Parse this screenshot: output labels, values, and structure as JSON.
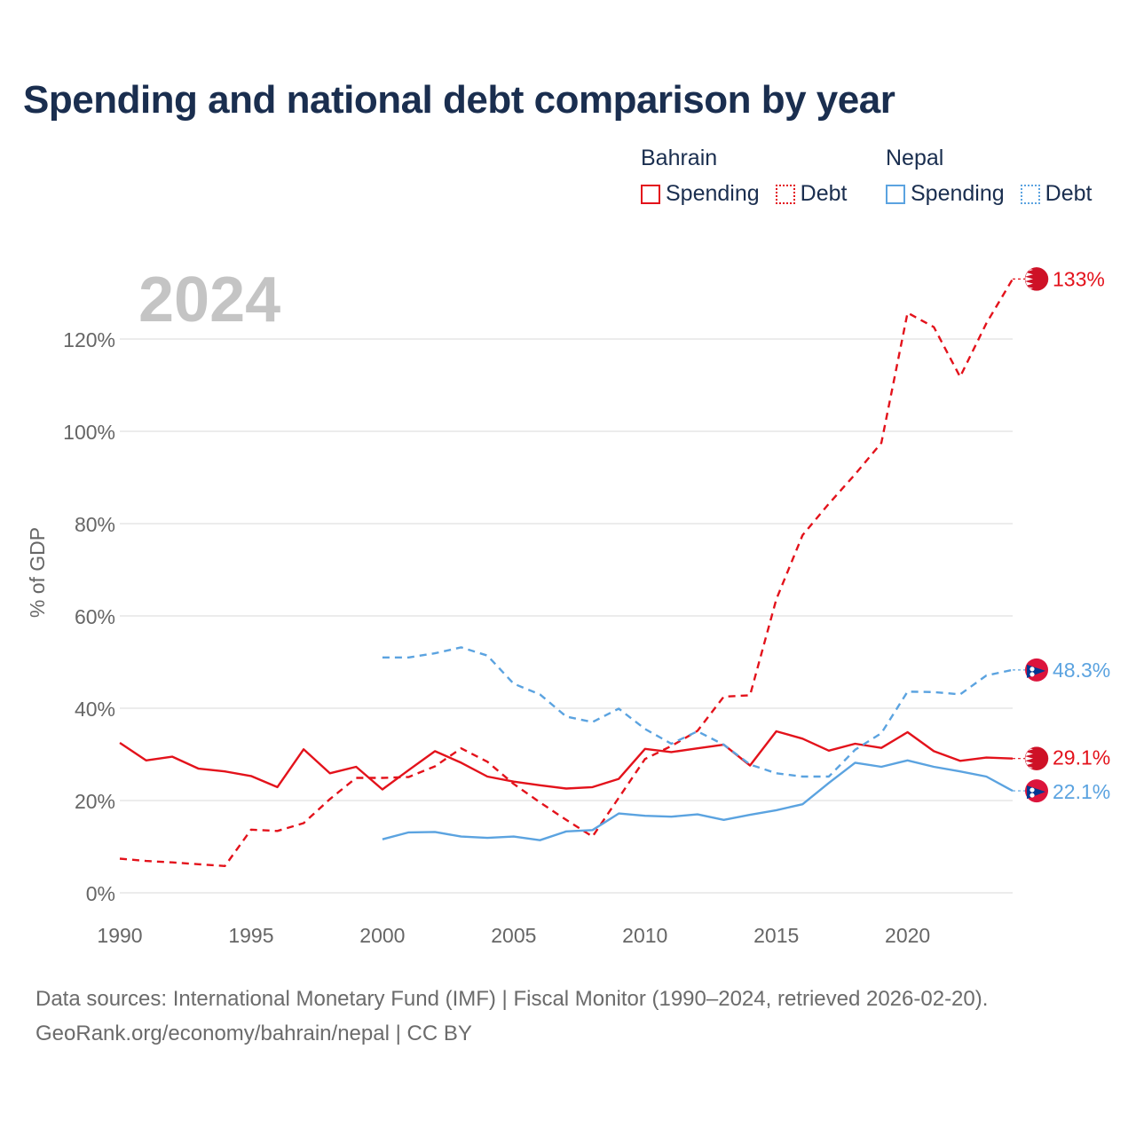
{
  "title": "Spending and national debt comparison by year",
  "legend": {
    "groups": [
      {
        "country": "Bahrain",
        "color": "#e3121b",
        "items": [
          {
            "label": "Spending",
            "style": "solid"
          },
          {
            "label": "Debt",
            "style": "dotted"
          }
        ]
      },
      {
        "country": "Nepal",
        "color": "#5ba3e0",
        "items": [
          {
            "label": "Spending",
            "style": "solid"
          },
          {
            "label": "Debt",
            "style": "dotted"
          }
        ]
      }
    ]
  },
  "year_watermark": "2024",
  "footer": {
    "line1": "Data sources: International Monetary Fund (IMF) | Fiscal Monitor (1990–2024, retrieved 2026-02-20).",
    "line2": "GeoRank.org/economy/bahrain/nepal | CC BY"
  },
  "end_labels": {
    "bahrain_debt": "133%",
    "nepal_debt": "48.3%",
    "bahrain_spending": "29.1%",
    "nepal_spending": "22.1%"
  },
  "colors": {
    "bahrain": "#e3121b",
    "nepal": "#5ba3e0",
    "grid": "#e6e6e6",
    "axis_text": "#666666",
    "watermark": "#c4c4c4"
  },
  "chart_data": {
    "type": "line",
    "title": "Spending and national debt comparison by year",
    "xlabel": "",
    "ylabel": "% of GDP",
    "xlim": [
      1990,
      2024
    ],
    "ylim": [
      0,
      135
    ],
    "x_ticks": [
      1990,
      1995,
      2000,
      2005,
      2010,
      2015,
      2020
    ],
    "x_tick_labels": [
      "1990",
      "1995",
      "2000",
      "2005",
      "2010",
      "2015",
      "2020"
    ],
    "y_ticks": [
      0,
      20,
      40,
      60,
      80,
      100,
      120
    ],
    "y_tick_labels": [
      "0%",
      "20%",
      "40%",
      "60%",
      "80%",
      "100%",
      "120%"
    ],
    "grid": true,
    "series": [
      {
        "name": "Bahrain Spending",
        "country": "Bahrain",
        "kind": "spending",
        "dash": "solid",
        "x": [
          1990,
          1991,
          1992,
          1993,
          1994,
          1995,
          1996,
          1997,
          1998,
          1999,
          2000,
          2001,
          2002,
          2003,
          2004,
          2005,
          2006,
          2007,
          2008,
          2009,
          2010,
          2011,
          2012,
          2013,
          2014,
          2015,
          2016,
          2017,
          2018,
          2019,
          2020,
          2021,
          2022,
          2023,
          2024
        ],
        "values": [
          32.5,
          28.7,
          29.5,
          26.9,
          26.3,
          25.3,
          22.9,
          31.1,
          25.9,
          27.3,
          22.4,
          26.6,
          30.7,
          28.2,
          25.2,
          24.1,
          23.3,
          22.6,
          22.9,
          24.7,
          31.2,
          30.5,
          31.3,
          32.1,
          27.6,
          35.0,
          33.4,
          30.8,
          32.3,
          31.4,
          34.8,
          30.7,
          28.6,
          29.3,
          29.1
        ]
      },
      {
        "name": "Bahrain Debt",
        "country": "Bahrain",
        "kind": "debt",
        "dash": "dashed",
        "x": [
          1990,
          1991,
          1992,
          1993,
          1994,
          1995,
          1996,
          1997,
          1998,
          1999,
          2000,
          2001,
          2002,
          2003,
          2004,
          2005,
          2006,
          2007,
          2008,
          2009,
          2010,
          2011,
          2012,
          2013,
          2014,
          2015,
          2016,
          2017,
          2018,
          2019,
          2020,
          2021,
          2022,
          2023,
          2024
        ],
        "values": [
          7.4,
          6.9,
          6.6,
          6.2,
          5.8,
          13.7,
          13.4,
          15.1,
          20.3,
          24.9,
          24.9,
          25.1,
          27.4,
          31.3,
          28.4,
          23.6,
          19.6,
          15.8,
          12.2,
          20.6,
          29.0,
          31.8,
          35.1,
          42.5,
          42.8,
          63.6,
          77.5,
          84.3,
          90.7,
          97.5,
          125.7,
          122.6,
          111.8,
          123.4,
          133.0
        ]
      },
      {
        "name": "Nepal Spending",
        "country": "Nepal",
        "kind": "spending",
        "dash": "solid",
        "x": [
          2000,
          2001,
          2002,
          2003,
          2004,
          2005,
          2006,
          2007,
          2008,
          2009,
          2010,
          2011,
          2012,
          2013,
          2014,
          2015,
          2016,
          2017,
          2018,
          2019,
          2020,
          2021,
          2022,
          2023,
          2024
        ],
        "values": [
          11.6,
          13.1,
          13.2,
          12.2,
          11.9,
          12.2,
          11.4,
          13.3,
          13.6,
          17.2,
          16.7,
          16.5,
          17.0,
          15.8,
          16.9,
          17.9,
          19.2,
          23.8,
          28.2,
          27.3,
          28.7,
          27.3,
          26.3,
          25.2,
          22.1
        ]
      },
      {
        "name": "Nepal Debt",
        "country": "Nepal",
        "kind": "debt",
        "dash": "dashed",
        "x": [
          2000,
          2001,
          2002,
          2003,
          2004,
          2005,
          2006,
          2007,
          2008,
          2009,
          2010,
          2011,
          2012,
          2013,
          2014,
          2015,
          2016,
          2017,
          2018,
          2019,
          2020,
          2021,
          2022,
          2023,
          2024
        ],
        "values": [
          51.0,
          51.0,
          51.9,
          53.2,
          51.4,
          45.3,
          43.0,
          38.2,
          37.0,
          39.9,
          35.5,
          32.3,
          35.0,
          32.1,
          27.8,
          25.9,
          25.2,
          25.2,
          31.0,
          34.6,
          43.6,
          43.5,
          43.0,
          47.1,
          48.3
        ]
      }
    ]
  }
}
